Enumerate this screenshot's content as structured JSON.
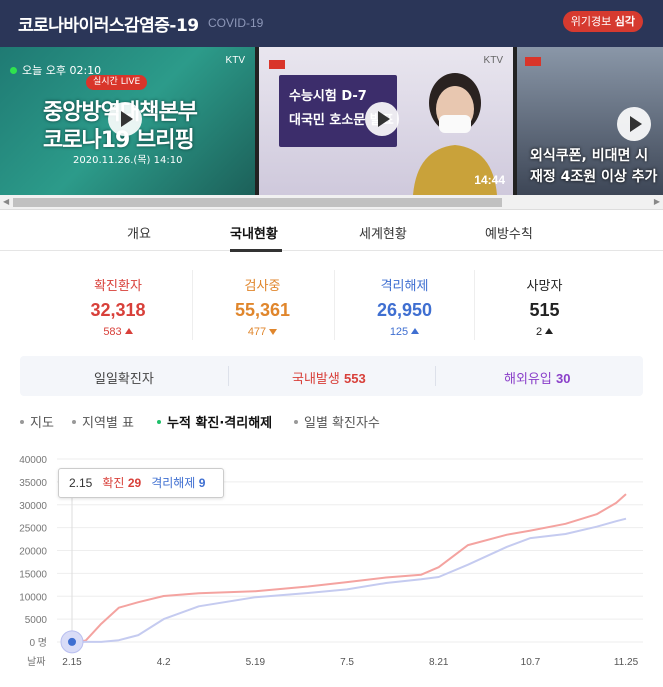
{
  "header": {
    "title": "코로나바이러스감염증-19",
    "subtitle": "COVID-19",
    "alert_label": "위기경보",
    "alert_level": "심각"
  },
  "videos": [
    {
      "channel": "KTV",
      "live_now": "오늘 오후 02:10",
      "live_badge": "실시간 LIVE",
      "line1": "중앙방역대책본부",
      "line2": "코로나19 브리핑",
      "date": "2020.11.26.(목) 14:10"
    },
    {
      "channel": "KTV",
      "line1": "수능시험 D-7",
      "line2": "대국민 호소문 발표",
      "duration": "14:44"
    },
    {
      "line1": "외식쿠폰, 비대면 시",
      "line2": "재정 4조원 이상 추가"
    }
  ],
  "tabs": {
    "items": [
      "개요",
      "국내현황",
      "세계현황",
      "예방수칙"
    ],
    "active": "국내현황"
  },
  "stats": [
    {
      "label": "확진환자",
      "value": "32,318",
      "delta": "583",
      "dir": "up",
      "color": "#d8403a"
    },
    {
      "label": "검사중",
      "value": "55,361",
      "delta": "477",
      "dir": "down",
      "color": "#e0862c"
    },
    {
      "label": "격리해제",
      "value": "26,950",
      "delta": "125",
      "dir": "up",
      "color": "#3f6fd1"
    },
    {
      "label": "사망자",
      "value": "515",
      "delta": "2",
      "dir": "up",
      "color": "#222222"
    }
  ],
  "daily": {
    "label": "일일확진자",
    "domestic_label": "국내발생",
    "domestic_value": "553",
    "overseas_label": "해외유입",
    "overseas_value": "30"
  },
  "subtabs": {
    "items": [
      "지도",
      "지역별 표",
      "누적 확진·격리해제",
      "일별 확진자수"
    ],
    "active": "누적 확진·격리해제"
  },
  "tooltip": {
    "date": "2.15",
    "confirmed_label": "확진",
    "confirmed_value": "29",
    "released_label": "격리해제",
    "released_value": "9"
  },
  "chart_data": {
    "type": "line",
    "xlabel": "날짜",
    "x_ticks": [
      "2.15",
      "4.2",
      "5.19",
      "7.5",
      "8.21",
      "10.7",
      "11.25"
    ],
    "y_ticks": [
      "0 명",
      "5000",
      "10000",
      "15000",
      "20000",
      "25000",
      "30000",
      "35000",
      "40000"
    ],
    "ylim": [
      0,
      40000
    ],
    "series": [
      {
        "name": "확진",
        "color": "#f4a3a0",
        "x": [
          "2.15",
          "2.22",
          "3.1",
          "3.10",
          "3.20",
          "4.2",
          "4.20",
          "5.19",
          "6.15",
          "7.5",
          "7.25",
          "8.12",
          "8.21",
          "9.5",
          "9.25",
          "10.7",
          "10.25",
          "11.10",
          "11.20",
          "11.25"
        ],
        "values": [
          29,
          300,
          4000,
          7500,
          8700,
          10062,
          10674,
          11110,
          12121,
          13091,
          14092,
          14714,
          16346,
          21177,
          23455,
          24353,
          25836,
          27942,
          30403,
          32318
        ]
      },
      {
        "name": "격리해제",
        "color": "#c5cbf0",
        "x": [
          "2.15",
          "2.22",
          "3.1",
          "3.10",
          "3.20",
          "4.2",
          "4.20",
          "5.19",
          "6.15",
          "7.5",
          "7.25",
          "8.12",
          "8.21",
          "9.5",
          "9.25",
          "10.7",
          "10.25",
          "11.10",
          "11.20",
          "11.25"
        ],
        "values": [
          9,
          18,
          30,
          400,
          1500,
          5000,
          7800,
          9800,
          10700,
          11500,
          12900,
          13700,
          14200,
          16900,
          20800,
          22700,
          23600,
          25200,
          26400,
          26950
        ]
      }
    ]
  }
}
